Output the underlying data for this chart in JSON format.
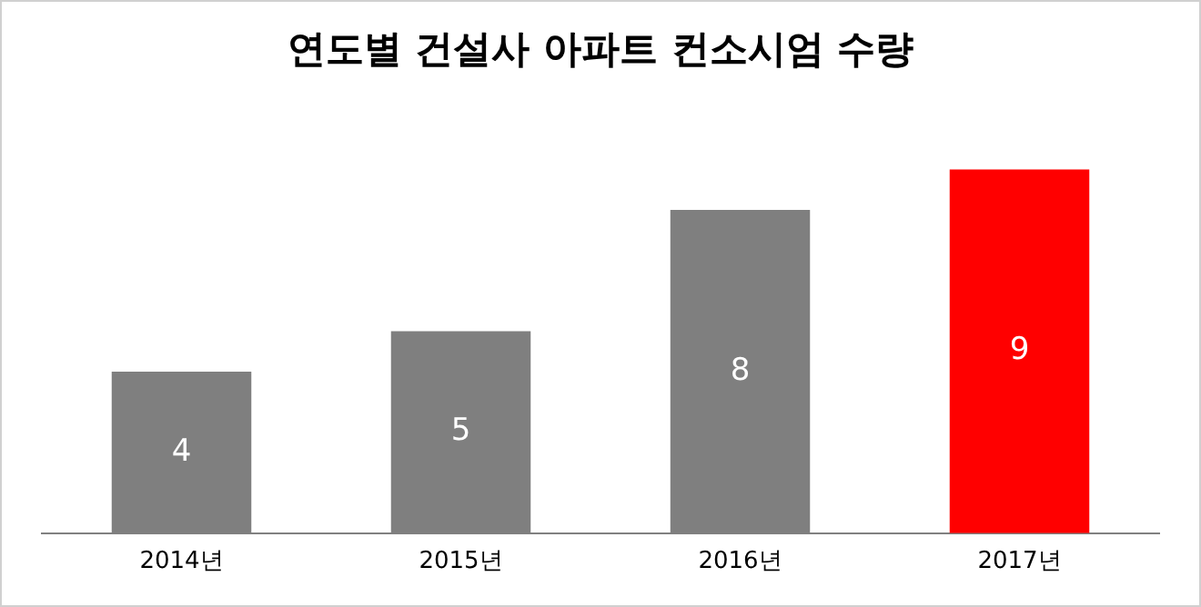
{
  "chart_data": {
    "type": "bar",
    "title": "연도별 건설사 아파트 컨소시엄 수량",
    "categories": [
      "2014년",
      "2015년",
      "2016년",
      "2017년"
    ],
    "values": [
      4,
      5,
      8,
      9
    ],
    "colors": [
      "#7f7f7f",
      "#7f7f7f",
      "#7f7f7f",
      "#ff0000"
    ],
    "data_labels": true,
    "grid": false,
    "legend": false
  }
}
